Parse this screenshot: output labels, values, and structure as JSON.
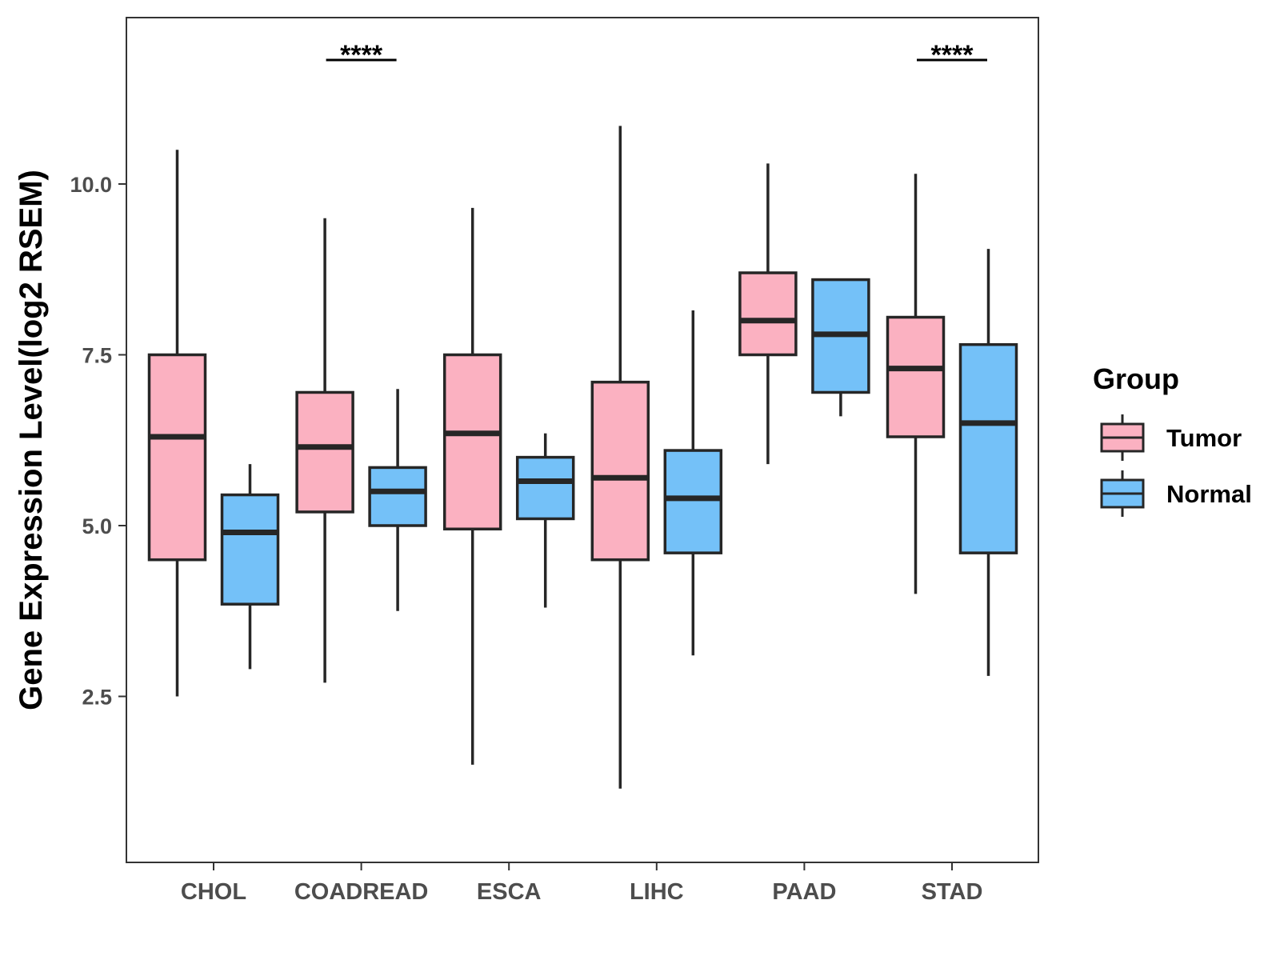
{
  "chart_data": {
    "type": "boxplot",
    "ylabel": "Gene Expression Level(log2 RSEM)",
    "xlabel": "",
    "ylim": [
      0.0,
      12.5
    ],
    "yticks": [
      2.5,
      5.0,
      7.5,
      10.0
    ],
    "ytick_labels": [
      "2.5",
      "5.0",
      "7.5",
      "10.0"
    ],
    "categories": [
      "CHOL",
      "COADREAD",
      "ESCA",
      "LIHC",
      "PAAD",
      "STAD"
    ],
    "legend": {
      "title": "Group",
      "position": "right",
      "entries": [
        {
          "name": "Tumor",
          "color": "#fbb1c1"
        },
        {
          "name": "Normal",
          "color": "#74c1f8"
        }
      ]
    },
    "series": [
      {
        "name": "Tumor",
        "color": "#fbb1c1",
        "boxes": [
          {
            "min": 2.5,
            "q1": 4.5,
            "median": 6.3,
            "q3": 7.5,
            "max": 10.5
          },
          {
            "min": 2.7,
            "q1": 5.2,
            "median": 6.15,
            "q3": 6.95,
            "max": 9.5
          },
          {
            "min": 1.5,
            "q1": 4.95,
            "median": 6.35,
            "q3": 7.5,
            "max": 9.65
          },
          {
            "min": 1.15,
            "q1": 4.5,
            "median": 5.7,
            "q3": 7.1,
            "max": 10.85
          },
          {
            "min": 5.9,
            "q1": 7.5,
            "median": 8.0,
            "q3": 8.7,
            "max": 10.3
          },
          {
            "min": 4.0,
            "q1": 6.3,
            "median": 7.3,
            "q3": 8.05,
            "max": 10.15
          }
        ]
      },
      {
        "name": "Normal",
        "color": "#74c1f8",
        "boxes": [
          {
            "min": 2.9,
            "q1": 3.85,
            "median": 4.9,
            "q3": 5.45,
            "max": 5.9
          },
          {
            "min": 3.75,
            "q1": 5.0,
            "median": 5.5,
            "q3": 5.85,
            "max": 7.0
          },
          {
            "min": 3.8,
            "q1": 5.1,
            "median": 5.65,
            "q3": 6.0,
            "max": 6.35
          },
          {
            "min": 3.1,
            "q1": 4.6,
            "median": 5.4,
            "q3": 6.1,
            "max": 8.15
          },
          {
            "min": 6.6,
            "q1": 6.95,
            "median": 7.8,
            "q3": 8.6,
            "max": 8.6
          },
          {
            "min": 2.8,
            "q1": 4.6,
            "median": 6.5,
            "q3": 7.65,
            "max": 9.05
          }
        ]
      }
    ],
    "annotations": [
      {
        "category": "COADREAD",
        "text": "****"
      },
      {
        "category": "STAD",
        "text": "****"
      }
    ]
  }
}
